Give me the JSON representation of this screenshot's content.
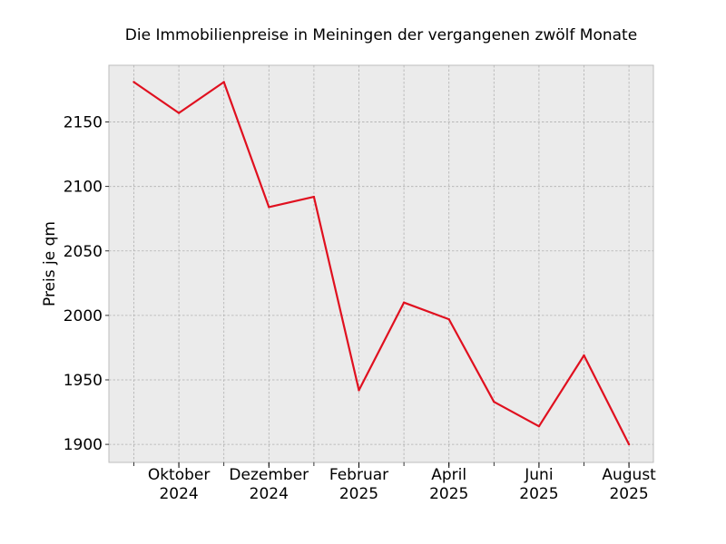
{
  "chart_data": {
    "type": "line",
    "title": "Die Immobilienpreise in Meiningen der vergangenen zwölf Monate",
    "xlabel": "",
    "ylabel": "Preis je qm",
    "x": [
      "2024-09",
      "2024-10",
      "2024-11",
      "2024-12",
      "2025-01",
      "2025-02",
      "2025-03",
      "2025-04",
      "2025-05",
      "2025-06",
      "2025-07",
      "2025-08"
    ],
    "x_tick_labels": [
      {
        "x": "2024-10",
        "line1": "Oktober",
        "line2": "2024"
      },
      {
        "x": "2024-12",
        "line1": "Dezember",
        "line2": "2024"
      },
      {
        "x": "2025-02",
        "line1": "Februar",
        "line2": "2025"
      },
      {
        "x": "2025-04",
        "line1": "April",
        "line2": "2025"
      },
      {
        "x": "2025-06",
        "line1": "Juni",
        "line2": "2025"
      },
      {
        "x": "2025-08",
        "line1": "August",
        "line2": "2025"
      }
    ],
    "series": [
      {
        "values": [
          2181,
          2157,
          2181,
          2084,
          2092,
          1942,
          2010,
          1997,
          1933,
          1914,
          1969,
          1900
        ],
        "color": "#e0101f"
      }
    ],
    "yticks": [
      1900,
      1950,
      2000,
      2050,
      2100,
      2150
    ],
    "ylim": [
      1886,
      2194
    ],
    "grid": true,
    "background": "#ebebeb"
  }
}
